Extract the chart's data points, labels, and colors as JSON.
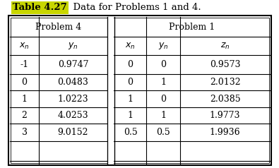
{
  "title_label": "Table 4.27",
  "title_label_bg": "#c8d600",
  "title_rest": "  Data for Problems 1 and 4.",
  "header1": "Problem 4",
  "header2": "Problem 1",
  "col_labels": [
    "$x_n$",
    "$y_n$",
    "$x_n$",
    "$y_n$",
    "$z_n$"
  ],
  "p4_xn": [
    "-1",
    "0",
    "1",
    "2",
    "3"
  ],
  "p4_yn": [
    "0.9747",
    "0.0483",
    "1.0223",
    "4.0253",
    "9.0152"
  ],
  "p1_xn": [
    "0",
    "0",
    "1",
    "1",
    "0.5"
  ],
  "p1_yn": [
    "0",
    "1",
    "0",
    "1",
    "0.5"
  ],
  "p1_zn": [
    "0.9573",
    "2.0132",
    "2.0385",
    "1.9773",
    "1.9936"
  ],
  "bg_color": "#ffffff",
  "font_family": "DejaVu Serif",
  "fontsize": 8.5,
  "title_fontsize": 9.5
}
